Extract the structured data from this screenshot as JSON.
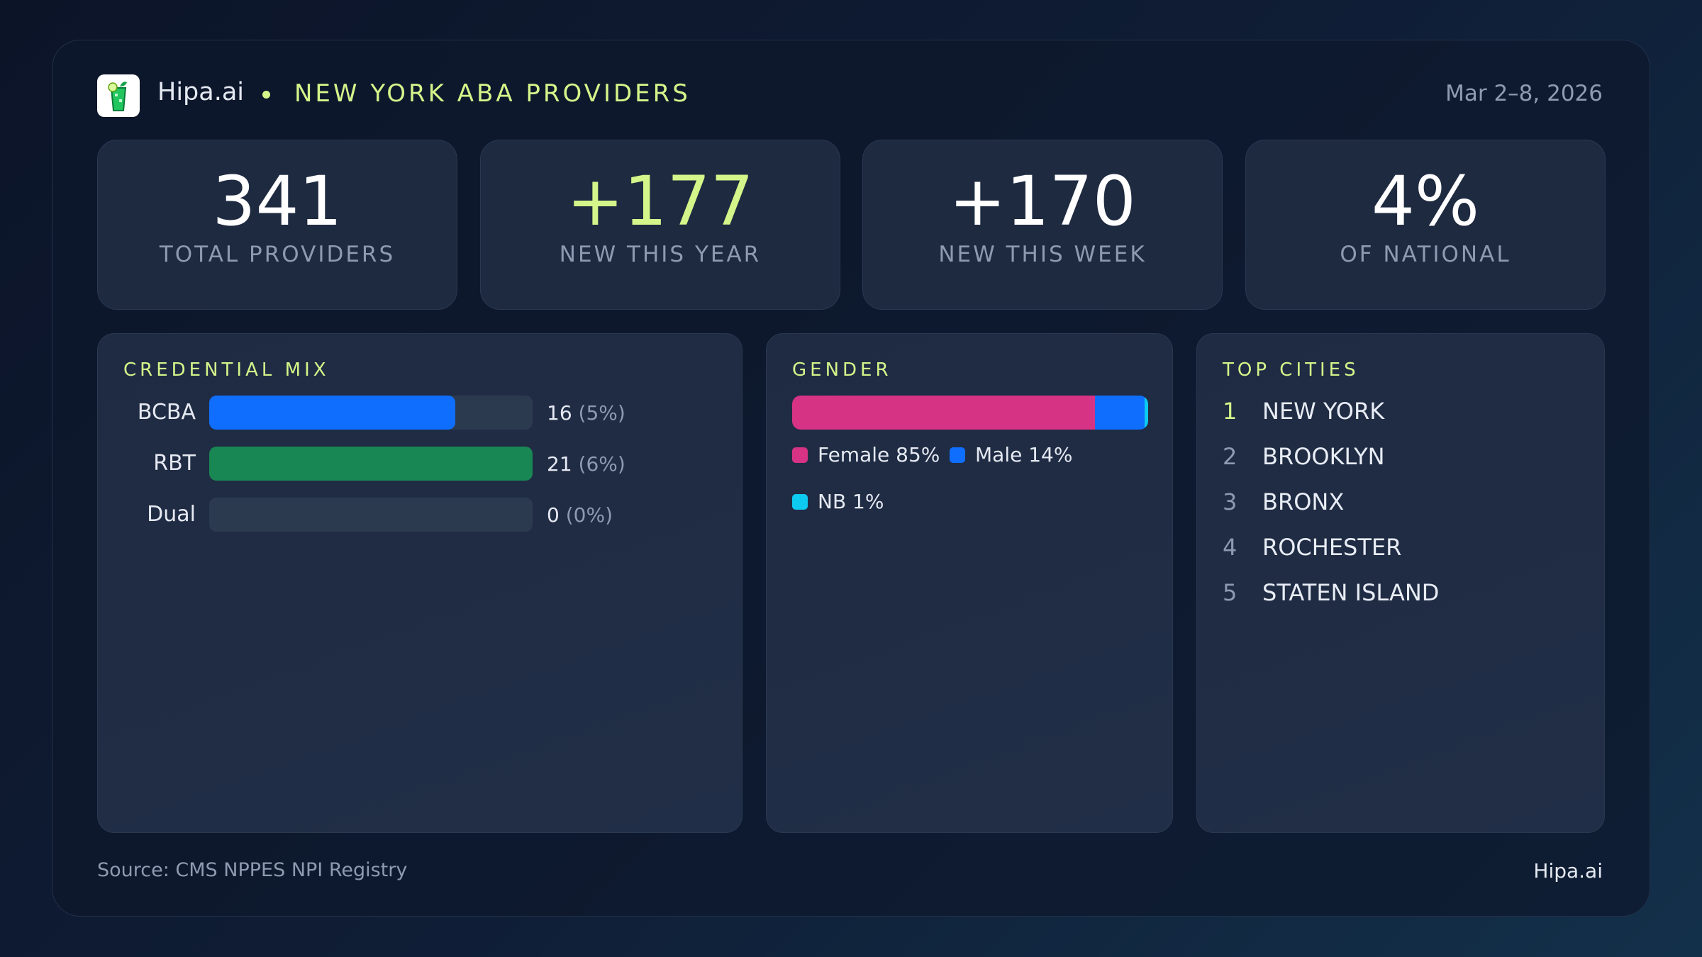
{
  "header": {
    "brand": "Hipa.ai",
    "title": "NEW YORK ABA PROVIDERS",
    "date": "Mar 2–8, 2026",
    "logo_icon": "mojito-glass-icon"
  },
  "stats": [
    {
      "value": "341",
      "label": "TOTAL PROVIDERS"
    },
    {
      "value": "+177",
      "label": "NEW THIS YEAR",
      "accent": "#d4f58a"
    },
    {
      "value": "+170",
      "label": "NEW THIS WEEK"
    },
    {
      "value": "4%",
      "label": "OF NATIONAL"
    }
  ],
  "credential": {
    "title": "CREDENTIAL MIX",
    "rows": [
      {
        "name": "BCBA",
        "count": "16",
        "pct": "(5%)",
        "value": 16,
        "color": "#0f6efd"
      },
      {
        "name": "RBT",
        "count": "21",
        "pct": "(6%)",
        "value": 21,
        "color": "#198754"
      },
      {
        "name": "Dual",
        "count": "0",
        "pct": "(0%)",
        "value": 0,
        "color": "#2c3a50"
      }
    ]
  },
  "gender": {
    "title": "GENDER",
    "segments": [
      {
        "label": "Female 85%",
        "value": 85,
        "color": "#d63384"
      },
      {
        "label": "Male 14%",
        "value": 14,
        "color": "#0f6efd"
      },
      {
        "label": "NB 1%",
        "value": 1,
        "color": "#0dcaf0"
      }
    ]
  },
  "cities": {
    "title": "TOP CITIES",
    "items": [
      {
        "rank": "1",
        "name": "NEW YORK"
      },
      {
        "rank": "2",
        "name": "BROOKLYN"
      },
      {
        "rank": "3",
        "name": "BRONX"
      },
      {
        "rank": "4",
        "name": "ROCHESTER"
      },
      {
        "rank": "5",
        "name": "STATEN ISLAND"
      }
    ]
  },
  "footer": {
    "source": "Source: CMS NPPES NPI Registry",
    "brand": "Hipa.ai"
  }
}
